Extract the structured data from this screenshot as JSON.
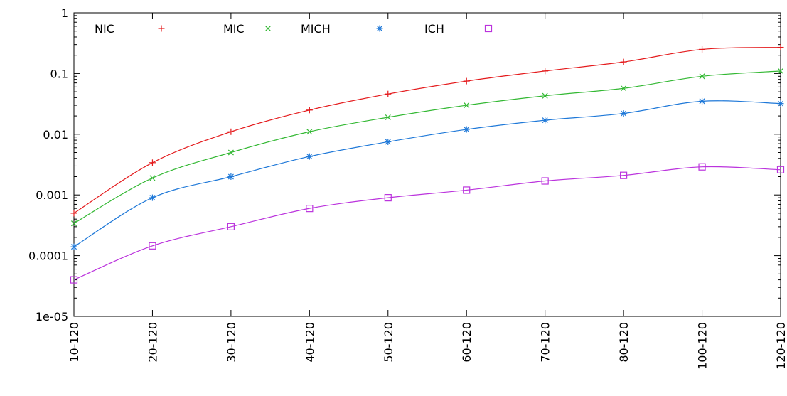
{
  "chart_data": {
    "type": "line",
    "title": "",
    "xlabel": "",
    "ylabel": "",
    "yscale": "log",
    "ylim": [
      1e-05,
      1
    ],
    "y_tick_labels": [
      "1e-05",
      "0.0001",
      "0.001",
      "0.01",
      "0.1",
      "1"
    ],
    "y_tick_values": [
      1e-05,
      0.0001,
      0.001,
      0.01,
      0.1,
      1
    ],
    "categories": [
      "10-120",
      "20-120",
      "30-120",
      "40-120",
      "50-120",
      "60-120",
      "70-120",
      "80-120",
      "100-120",
      "120-120"
    ],
    "grid": false,
    "legend_position": "top-left",
    "series": [
      {
        "name": "NIC",
        "marker": "plus",
        "color": "#e41a1c",
        "values": [
          0.0005,
          0.0034,
          0.011,
          0.025,
          0.046,
          0.075,
          0.11,
          0.155,
          0.25,
          0.27
        ]
      },
      {
        "name": "MIC",
        "marker": "cross",
        "color": "#33b833",
        "values": [
          0.00034,
          0.0019,
          0.005,
          0.011,
          0.019,
          0.03,
          0.043,
          0.057,
          0.09,
          0.11
        ]
      },
      {
        "name": "MICH",
        "marker": "asterisk",
        "color": "#1e78d8",
        "values": [
          0.00014,
          0.0009,
          0.002,
          0.0043,
          0.0075,
          0.012,
          0.017,
          0.022,
          0.035,
          0.032
        ]
      },
      {
        "name": "ICH",
        "marker": "square",
        "color": "#bb33dd",
        "values": [
          4e-05,
          0.000145,
          0.0003,
          0.0006,
          0.0009,
          0.0012,
          0.0017,
          0.0021,
          0.0029,
          0.0026
        ]
      }
    ]
  }
}
